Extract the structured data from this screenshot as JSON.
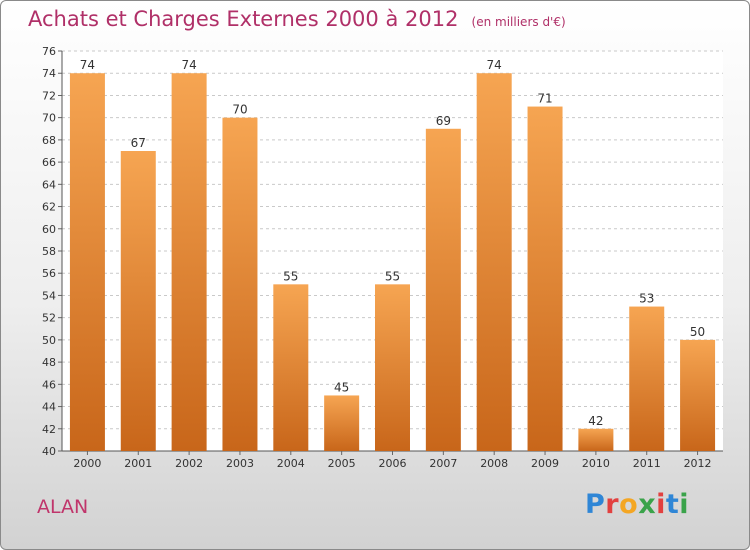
{
  "chart_data": {
    "type": "bar",
    "title": "Achats et Charges Externes 2000 à 2012",
    "subtitle": "(en milliers d'€)",
    "categories": [
      "2000",
      "2001",
      "2002",
      "2003",
      "2004",
      "2005",
      "2006",
      "2007",
      "2008",
      "2009",
      "2010",
      "2011",
      "2012"
    ],
    "values": [
      74,
      67,
      74,
      70,
      55,
      45,
      55,
      69,
      74,
      71,
      42,
      53,
      50
    ],
    "ylim": [
      40,
      76
    ],
    "yticks": [
      40,
      42,
      44,
      46,
      48,
      50,
      52,
      54,
      56,
      58,
      60,
      62,
      64,
      66,
      68,
      70,
      72,
      74,
      76
    ],
    "grid": true,
    "xlabel": "",
    "ylabel": ""
  },
  "commune": "ALAN",
  "brand": {
    "letters": [
      {
        "char": "P",
        "color": "#2f86d6"
      },
      {
        "char": "r",
        "color": "#e2403f"
      },
      {
        "char": "o",
        "color": "#f4a623"
      },
      {
        "char": "x",
        "color": "#3aa34a"
      },
      {
        "char": "i",
        "color": "#e2403f"
      },
      {
        "char": "t",
        "color": "#2f86d6"
      },
      {
        "char": "i",
        "color": "#3aa34a"
      }
    ]
  },
  "colors": {
    "bar_light": "#f6a552",
    "bar_dark": "#c8661a",
    "title": "#b03068",
    "grid": "#c9c9c9"
  }
}
